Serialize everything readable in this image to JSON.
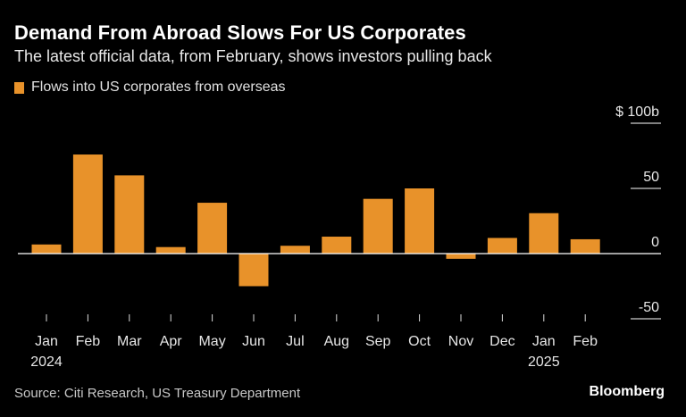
{
  "header": {
    "title": "Demand From Abroad Slows For US Corporates",
    "subtitle": "The latest official data, from February, shows investors pulling back"
  },
  "footer": {
    "source": "Source: Citi Research, US Treasury Department",
    "brand": "Bloomberg"
  },
  "colors": {
    "bar": "#E8922A",
    "background": "#000000",
    "zero_line": "#ffffff",
    "grid": "#ffffff"
  },
  "chart_data": {
    "type": "bar",
    "categories": [
      "Jan",
      "Feb",
      "Mar",
      "Apr",
      "May",
      "Jun",
      "Jul",
      "Aug",
      "Sep",
      "Oct",
      "Nov",
      "Dec",
      "Jan",
      "Feb"
    ],
    "year_labels": [
      "2024",
      "",
      "",
      "",
      "",
      "",
      "",
      "",
      "",
      "",
      "",
      "",
      "2025",
      ""
    ],
    "series": [
      {
        "name": "Flows into US corporates from overseas",
        "values": [
          7,
          76,
          60,
          5,
          39,
          -25,
          6,
          13,
          42,
          50,
          -4,
          12,
          31,
          11
        ]
      }
    ],
    "y_ticks": [
      {
        "value": 100,
        "label": "$ 100b"
      },
      {
        "value": 50,
        "label": "50"
      },
      {
        "value": 0,
        "label": "0"
      },
      {
        "value": -50,
        "label": "-50"
      }
    ],
    "ylim": [
      -50,
      100
    ],
    "y_axis_position": "right",
    "grid": false,
    "legend_position": "top-left"
  }
}
